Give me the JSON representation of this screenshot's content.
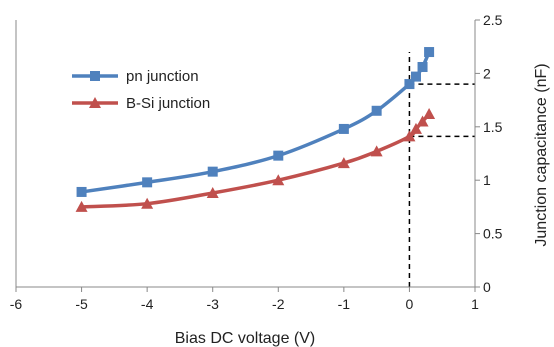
{
  "chart_data": {
    "type": "line",
    "xlabel": "Bias DC voltage (V)",
    "ylabel": "Junction capacitance (nF)",
    "xlim": [
      -6,
      1
    ],
    "ylim": [
      0,
      2.5
    ],
    "xticks": [
      -6,
      -5,
      -4,
      -3,
      -2,
      -1,
      0,
      1
    ],
    "yticks": [
      0,
      0.5,
      1,
      1.5,
      2,
      2.5
    ],
    "y_axis_side": "right",
    "grid": false,
    "legend_position": "top-left",
    "series": [
      {
        "name": "pn junction",
        "color": "#4f81bd",
        "marker": "square",
        "x": [
          -5,
          -4,
          -3,
          -2,
          -1,
          -0.5,
          0,
          0.1,
          0.2,
          0.3
        ],
        "y": [
          0.89,
          0.98,
          1.08,
          1.23,
          1.48,
          1.65,
          1.9,
          1.97,
          2.06,
          2.2
        ]
      },
      {
        "name": "B-Si junction",
        "color": "#c0504d",
        "marker": "triangle",
        "x": [
          -5,
          -4,
          -3,
          -2,
          -1,
          -0.5,
          0,
          0.1,
          0.2,
          0.3
        ],
        "y": [
          0.75,
          0.78,
          0.88,
          1.0,
          1.16,
          1.27,
          1.41,
          1.48,
          1.55,
          1.62
        ]
      }
    ],
    "reference_lines": [
      {
        "type": "vertical",
        "x": 0,
        "y_from": 0,
        "y_to": 2.2
      },
      {
        "type": "horizontal",
        "y": 1.9,
        "x_from": 0,
        "x_to": 1
      },
      {
        "type": "horizontal",
        "y": 1.41,
        "x_from": 0,
        "x_to": 1
      }
    ]
  }
}
